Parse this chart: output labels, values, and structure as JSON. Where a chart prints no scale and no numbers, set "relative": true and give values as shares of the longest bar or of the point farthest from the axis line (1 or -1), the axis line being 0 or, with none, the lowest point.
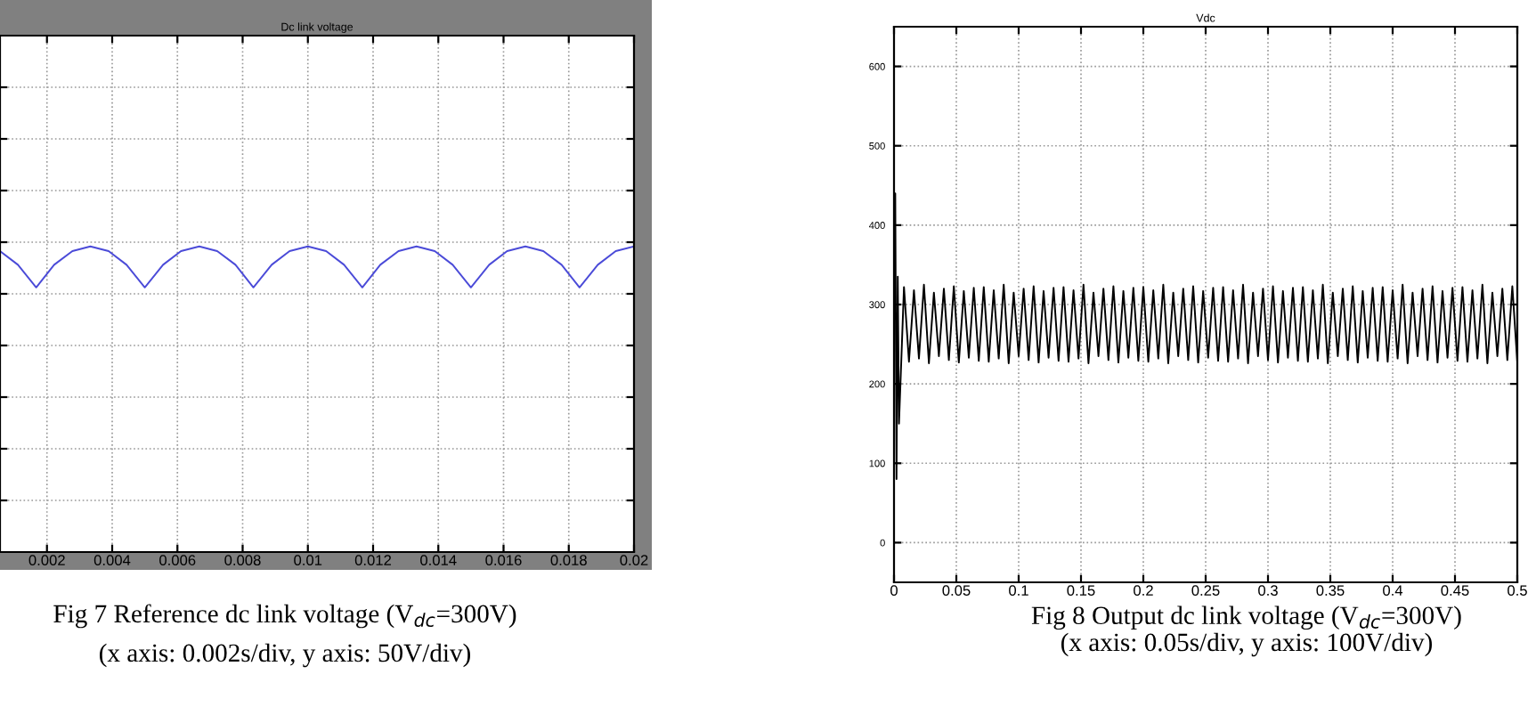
{
  "chart_data": [
    {
      "type": "line",
      "title": "Dc link voltage",
      "relative": true,
      "tick_labels": "x",
      "grid": true,
      "xlim": [
        0.00056,
        0.02
      ],
      "xticks": [
        0.002,
        0.004,
        0.006,
        0.008,
        0.01,
        0.012,
        0.014,
        0.016,
        0.018,
        0.02
      ],
      "series": [
        {
          "color": "#4b4bd8",
          "x": [
            0.00056,
            0.00111,
            0.00167,
            0.00222,
            0.00278,
            0.00333,
            0.00389,
            0.00444,
            0.005,
            0.00556,
            0.00611,
            0.00667,
            0.00722,
            0.00778,
            0.00833,
            0.00889,
            0.00944,
            0.01,
            0.01056,
            0.01111,
            0.01167,
            0.01222,
            0.01278,
            0.01333,
            0.01389,
            0.01444,
            0.015,
            0.01556,
            0.01611,
            0.01667,
            0.01722,
            0.01778,
            0.01833,
            0.01889,
            0.01944,
            0.02
          ],
          "values": [
            0.985,
            0.94,
            0.866,
            0.94,
            0.985,
            1,
            0.985,
            0.94,
            0.866,
            0.94,
            0.985,
            1,
            0.985,
            0.94,
            0.866,
            0.94,
            0.985,
            1,
            0.985,
            0.94,
            0.866,
            0.94,
            0.985,
            1,
            0.985,
            0.94,
            0.866,
            0.94,
            0.985,
            1,
            0.985,
            0.94,
            0.866,
            0.94,
            0.985,
            1
          ]
        }
      ],
      "annotations": [
        "Fig 7 Reference dc link voltage (V$_{dc}$=300V)",
        "(x axis: 0.002s/div, y axis: 50V/div)"
      ]
    },
    {
      "type": "line",
      "title": "Vdc",
      "grid": true,
      "xlim": [
        0,
        0.5
      ],
      "xticks": [
        0,
        0.05,
        0.1,
        0.15,
        0.2,
        0.25,
        0.3,
        0.35,
        0.4,
        0.45,
        0.5
      ],
      "ylim": [
        -50,
        650
      ],
      "yticks": [
        0,
        100,
        200,
        300,
        400,
        500,
        600
      ],
      "series": [
        {
          "color": "#000000",
          "x": [
            0,
            0.001,
            0.002,
            0.003,
            0.004,
            0.008,
            0.012,
            0.016,
            0.02,
            0.024,
            0.028,
            0.032,
            0.036,
            0.04,
            0.044,
            0.048,
            0.052,
            0.056,
            0.06,
            0.064,
            0.068,
            0.072,
            0.076,
            0.08,
            0.084,
            0.088,
            0.092,
            0.096,
            0.1,
            0.104,
            0.108,
            0.112,
            0.116,
            0.12,
            0.124,
            0.128,
            0.132,
            0.136,
            0.14,
            0.144,
            0.148,
            0.152,
            0.156,
            0.16,
            0.164,
            0.168,
            0.172,
            0.176,
            0.18,
            0.184,
            0.188,
            0.192,
            0.196,
            0.2,
            0.204,
            0.208,
            0.212,
            0.216,
            0.22,
            0.224,
            0.228,
            0.232,
            0.236,
            0.24,
            0.244,
            0.248,
            0.252,
            0.256,
            0.26,
            0.264,
            0.268,
            0.272,
            0.276,
            0.28,
            0.284,
            0.288,
            0.292,
            0.296,
            0.3,
            0.304,
            0.308,
            0.312,
            0.316,
            0.32,
            0.324,
            0.328,
            0.332,
            0.336,
            0.34,
            0.344,
            0.348,
            0.352,
            0.356,
            0.36,
            0.364,
            0.368,
            0.372,
            0.376,
            0.38,
            0.384,
            0.388,
            0.392,
            0.396,
            0.4,
            0.404,
            0.408,
            0.412,
            0.416,
            0.42,
            0.424,
            0.428,
            0.432,
            0.436,
            0.44,
            0.444,
            0.448,
            0.452,
            0.456,
            0.46,
            0.464,
            0.468,
            0.472,
            0.476,
            0.48,
            0.484,
            0.488,
            0.492,
            0.496,
            0.5
          ],
          "values": [
            275,
            440,
            80,
            335,
            150,
            322,
            228,
            318,
            232,
            325,
            226,
            315,
            235,
            320,
            230,
            323,
            227,
            317,
            233,
            321,
            229,
            322,
            228,
            318,
            232,
            325,
            226,
            315,
            235,
            320,
            230,
            323,
            227,
            317,
            233,
            321,
            229,
            322,
            228,
            318,
            232,
            325,
            226,
            315,
            235,
            320,
            230,
            323,
            227,
            317,
            233,
            321,
            229,
            322,
            228,
            318,
            232,
            325,
            226,
            315,
            235,
            320,
            230,
            323,
            227,
            317,
            233,
            321,
            229,
            322,
            228,
            318,
            232,
            325,
            226,
            315,
            235,
            320,
            230,
            323,
            227,
            317,
            233,
            321,
            229,
            322,
            228,
            318,
            232,
            325,
            226,
            315,
            235,
            320,
            230,
            323,
            227,
            317,
            233,
            321,
            229,
            322,
            228,
            318,
            232,
            325,
            226,
            315,
            235,
            320,
            230,
            323,
            227,
            317,
            233,
            321,
            229,
            322,
            228,
            318,
            232,
            325,
            226,
            315,
            235,
            320,
            230,
            323,
            227
          ]
        }
      ],
      "annotations": [
        "Fig 8 Output dc link voltage (V$_{dc}$=300V)",
        "(x axis: 0.05s/div, y axis: 100V/div)"
      ]
    }
  ]
}
